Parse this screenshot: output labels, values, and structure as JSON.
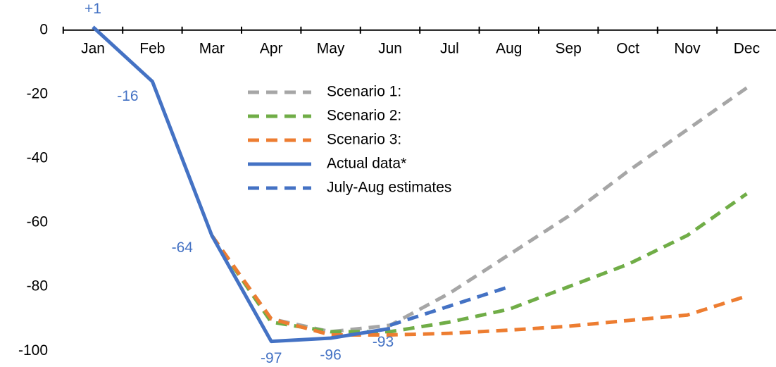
{
  "chart_data": {
    "type": "line",
    "categories": [
      "Jan",
      "Feb",
      "Mar",
      "Apr",
      "May",
      "Jun",
      "Jul",
      "Aug",
      "Sep",
      "Oct",
      "Nov",
      "Dec"
    ],
    "series": [
      {
        "name": "Scenario 1:",
        "color": "#a6a6a6",
        "dashed": true,
        "values": [
          null,
          null,
          -64,
          -90,
          -94,
          -92,
          -82,
          -70,
          -58,
          -44,
          -31,
          -18
        ]
      },
      {
        "name": "Scenario 2:",
        "color": "#70ad47",
        "dashed": true,
        "values": [
          null,
          null,
          -64,
          -91,
          -94,
          -94,
          -91,
          -87,
          -80,
          -73,
          -64,
          -51
        ]
      },
      {
        "name": "Scenario 3:",
        "color": "#ed7d31",
        "dashed": true,
        "values": [
          null,
          null,
          -64,
          -90,
          -95,
          -95,
          -94.5,
          -93.5,
          -92.3,
          -90.5,
          -88.8,
          -82.9
        ]
      },
      {
        "name": "Actual data*",
        "color": "#4472c4",
        "dashed": false,
        "values": [
          1,
          -16,
          -64,
          -97,
          -96,
          -93,
          null,
          null,
          null,
          null,
          null,
          null
        ],
        "value_labels": [
          "+1",
          "-16",
          "-64",
          "-97",
          "-96",
          "-93",
          null,
          null,
          null,
          null,
          null,
          null
        ]
      },
      {
        "name": "July-Aug estimates",
        "color": "#4472c4",
        "dashed": true,
        "values": [
          null,
          null,
          null,
          null,
          null,
          -92,
          -86,
          -80,
          null,
          null,
          null,
          null
        ]
      }
    ],
    "ylim": [
      -105,
      9.4
    ],
    "yticks": [
      0,
      -20,
      -40,
      -60,
      -80,
      -100
    ],
    "legend": "upper center"
  }
}
